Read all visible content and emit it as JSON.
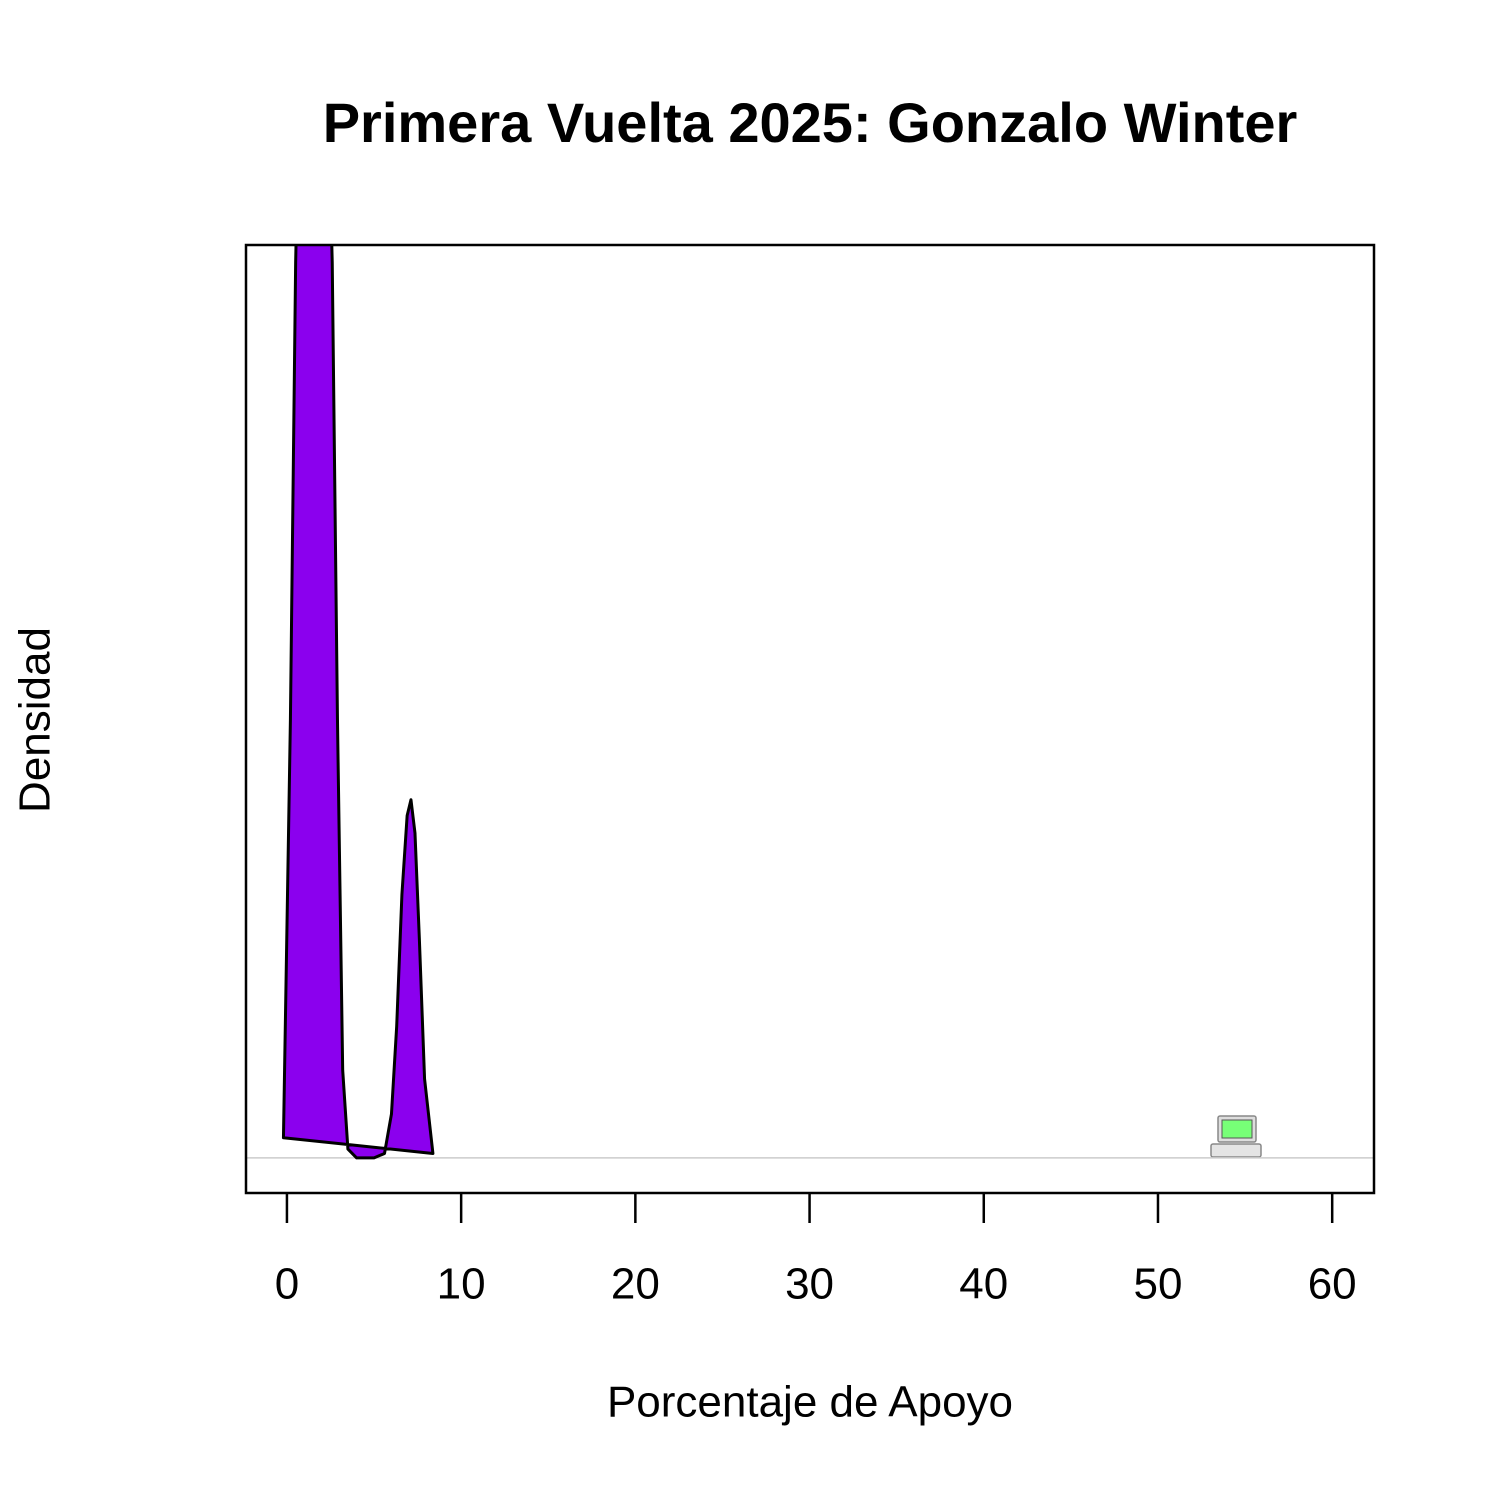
{
  "chart_data": {
    "type": "density",
    "title": "Primera Vuelta 2025: Gonzalo Winter",
    "xlabel": "Porcentaje de Apoyo",
    "ylabel": "Densidad",
    "x": [
      -0.2,
      0.2,
      0.5,
      1.0,
      1.5,
      2.0,
      2.6,
      2.9,
      3.2,
      3.5,
      4.0,
      5.0,
      5.6,
      6.0,
      6.3,
      6.6,
      6.9,
      7.12,
      7.35,
      7.6,
      7.9,
      8.38
    ],
    "values": [
      0.023,
      0.5,
      1.02,
      1.5,
      1.7,
      1.5,
      1.02,
      0.5,
      0.1,
      0.01,
      0,
      0,
      0.005,
      0.05,
      0.15,
      0.3,
      0.39,
      0.408,
      0.37,
      0.25,
      0.09,
      0.005
    ],
    "color": "#8b00ee",
    "xlim": [
      -2.35,
      62.4
    ],
    "ylim": [
      -0.04,
      1.04
    ],
    "xticks": [
      0,
      10,
      20,
      30,
      40,
      50,
      60
    ]
  }
}
